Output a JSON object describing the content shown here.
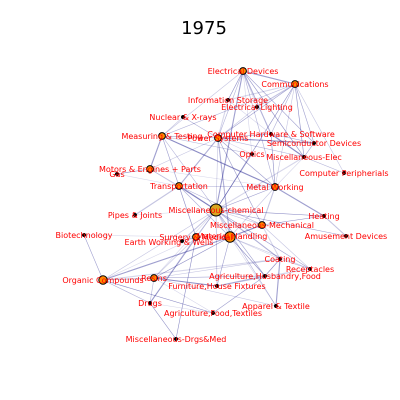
{
  "title": "1975",
  "colors": {
    "label": "#ff0000",
    "edge": "#1a1a8c",
    "node_fill": "#ff8c00",
    "node_fill_hub": "#daa520",
    "node_stroke": "#000000"
  },
  "nodes": [
    {
      "id": "electrical-devices",
      "label": "Electrical Devices",
      "size": "small"
    },
    {
      "id": "communications",
      "label": "Communications",
      "size": "small"
    },
    {
      "id": "information-storage",
      "label": "Information Storage",
      "size": "tiny"
    },
    {
      "id": "electrical-lighting",
      "label": "Electrical Lighting",
      "size": "tiny"
    },
    {
      "id": "nuclear-xrays",
      "label": "Nuclear & X-rays",
      "size": "tiny"
    },
    {
      "id": "measuring-testing",
      "label": "Measuring & Testing",
      "size": "small"
    },
    {
      "id": "power-systems",
      "label": "Power Systems",
      "size": "small"
    },
    {
      "id": "computer-hardware",
      "label": "Computer Hardware & Software",
      "size": "tiny"
    },
    {
      "id": "semiconductor-devices",
      "label": "Semiconductor Devices",
      "size": "tiny"
    },
    {
      "id": "optics",
      "label": "Optics",
      "size": "tiny"
    },
    {
      "id": "misc-elec",
      "label": "Miscellaneous-Elec",
      "size": "tiny"
    },
    {
      "id": "motors-engines",
      "label": "Motors & Engines + Parts",
      "size": "small"
    },
    {
      "id": "gas",
      "label": "Gas",
      "size": "tiny"
    },
    {
      "id": "computer-peripherals",
      "label": "Computer Peripherials",
      "size": "tiny"
    },
    {
      "id": "transportation",
      "label": "Transportation",
      "size": "small"
    },
    {
      "id": "metal-working",
      "label": "Metal Working",
      "size": "small"
    },
    {
      "id": "misc-chemical",
      "label": "Miscellaneous-chemical",
      "size": "hub"
    },
    {
      "id": "heating",
      "label": "Heating",
      "size": "tiny"
    },
    {
      "id": "pipes-joints",
      "label": "Pipes & Joints",
      "size": "tiny"
    },
    {
      "id": "misc-mechanical",
      "label": "Miscellaneous-Mechanical",
      "size": "small"
    },
    {
      "id": "biotechnology",
      "label": "Biotechnology",
      "size": "tiny"
    },
    {
      "id": "surgery-medical",
      "label": "Surgery & Medical",
      "size": "small"
    },
    {
      "id": "material-handling",
      "label": "Material Handling",
      "size": "large"
    },
    {
      "id": "amusement-devices",
      "label": "Amusement Devices",
      "size": "tiny"
    },
    {
      "id": "earth-working",
      "label": "Earth Working & Wells",
      "size": "tiny"
    },
    {
      "id": "coating",
      "label": "Coating",
      "size": "tiny"
    },
    {
      "id": "receptacles",
      "label": "Receptacles",
      "size": "tiny"
    },
    {
      "id": "organic-compounds",
      "label": "Organic Compounds",
      "size": "medium"
    },
    {
      "id": "resins",
      "label": "Resins",
      "size": "small"
    },
    {
      "id": "agriculture-husbandry",
      "label": "Agriculture,Husbandry,Food",
      "size": "tiny"
    },
    {
      "id": "furniture",
      "label": "Furniture,House Fixtures",
      "size": "tiny"
    },
    {
      "id": "drugs",
      "label": "Drugs",
      "size": "tiny"
    },
    {
      "id": "apparel-textile",
      "label": "Apparel & Textile",
      "size": "tiny"
    },
    {
      "id": "agriculture-food-textiles",
      "label": "Agriculture,Food,Textiles",
      "size": "tiny"
    },
    {
      "id": "misc-drgs-med",
      "label": "Miscellaneous-Drgs&Med",
      "size": "tiny"
    }
  ],
  "edges": [
    [
      "misc-chemical",
      "material-handling"
    ],
    [
      "misc-chemical",
      "misc-mechanical"
    ],
    [
      "misc-chemical",
      "surgery-medical"
    ],
    [
      "misc-chemical",
      "metal-working"
    ],
    [
      "misc-chemical",
      "transportation"
    ],
    [
      "misc-chemical",
      "motors-engines"
    ],
    [
      "misc-chemical",
      "power-systems"
    ],
    [
      "misc-chemical",
      "measuring-testing"
    ],
    [
      "misc-chemical",
      "electrical-devices"
    ],
    [
      "misc-chemical",
      "communications"
    ],
    [
      "misc-chemical",
      "resins"
    ],
    [
      "misc-chemical",
      "organic-compounds"
    ],
    [
      "misc-chemical",
      "coating"
    ],
    [
      "misc-chemical",
      "receptacles"
    ],
    [
      "misc-chemical",
      "heating"
    ],
    [
      "misc-chemical",
      "pipes-joints"
    ],
    [
      "misc-chemical",
      "earth-working"
    ],
    [
      "misc-chemical",
      "furniture"
    ],
    [
      "misc-chemical",
      "agriculture-husbandry"
    ],
    [
      "misc-chemical",
      "optics"
    ],
    [
      "misc-chemical",
      "misc-elec"
    ],
    [
      "misc-chemical",
      "drugs"
    ],
    [
      "misc-chemical",
      "apparel-textile"
    ],
    [
      "misc-chemical",
      "amusement-devices"
    ],
    [
      "material-handling",
      "misc-mechanical"
    ],
    [
      "material-handling",
      "surgery-medical"
    ],
    [
      "material-handling",
      "metal-working"
    ],
    [
      "material-handling",
      "transportation"
    ],
    [
      "material-handling",
      "organic-compounds"
    ],
    [
      "material-handling",
      "resins"
    ],
    [
      "material-handling",
      "coating"
    ],
    [
      "material-handling",
      "receptacles"
    ],
    [
      "material-handling",
      "power-systems"
    ],
    [
      "material-handling",
      "furniture"
    ],
    [
      "material-handling",
      "agriculture-husbandry"
    ],
    [
      "material-handling",
      "apparel-textile"
    ],
    [
      "misc-mechanical",
      "metal-working"
    ],
    [
      "misc-mechanical",
      "transportation"
    ],
    [
      "misc-mechanical",
      "power-systems"
    ],
    [
      "misc-mechanical",
      "heating"
    ],
    [
      "misc-mechanical",
      "coating"
    ],
    [
      "misc-mechanical",
      "receptacles"
    ],
    [
      "metal-working",
      "transportation"
    ],
    [
      "metal-working",
      "power-systems"
    ],
    [
      "metal-working",
      "measuring-testing"
    ],
    [
      "metal-working",
      "motors-engines"
    ],
    [
      "metal-working",
      "communications"
    ],
    [
      "metal-working",
      "electrical-devices"
    ],
    [
      "metal-working",
      "heating"
    ],
    [
      "metal-working",
      "computer-hardware"
    ],
    [
      "metal-working",
      "misc-elec"
    ],
    [
      "transportation",
      "motors-engines"
    ],
    [
      "transportation",
      "power-systems"
    ],
    [
      "transportation",
      "measuring-testing"
    ],
    [
      "transportation",
      "surgery-medical"
    ],
    [
      "transportation",
      "gas"
    ],
    [
      "transportation",
      "pipes-joints"
    ],
    [
      "power-systems",
      "electrical-devices"
    ],
    [
      "power-systems",
      "communications"
    ],
    [
      "power-systems",
      "measuring-testing"
    ],
    [
      "power-systems",
      "information-storage"
    ],
    [
      "power-systems",
      "electrical-lighting"
    ],
    [
      "power-systems",
      "nuclear-xrays"
    ],
    [
      "power-systems",
      "computer-hardware"
    ],
    [
      "power-systems",
      "semiconductor-devices"
    ],
    [
      "power-systems",
      "optics"
    ],
    [
      "power-systems",
      "motors-engines"
    ],
    [
      "power-systems",
      "misc-elec"
    ],
    [
      "electrical-devices",
      "communications"
    ],
    [
      "electrical-devices",
      "information-storage"
    ],
    [
      "electrical-devices",
      "electrical-lighting"
    ],
    [
      "electrical-devices",
      "measuring-testing"
    ],
    [
      "electrical-devices",
      "computer-hardware"
    ],
    [
      "electrical-devices",
      "semiconductor-devices"
    ],
    [
      "electrical-devices",
      "misc-elec"
    ],
    [
      "electrical-devices",
      "optics"
    ],
    [
      "communications",
      "electrical-lighting"
    ],
    [
      "communications",
      "computer-hardware"
    ],
    [
      "communications",
      "semiconductor-devices"
    ],
    [
      "communications",
      "misc-elec"
    ],
    [
      "communications",
      "information-storage"
    ],
    [
      "communications",
      "computer-peripherals"
    ],
    [
      "communications",
      "measuring-testing"
    ],
    [
      "computer-hardware",
      "semiconductor-devices"
    ],
    [
      "computer-hardware",
      "misc-elec"
    ],
    [
      "computer-hardware",
      "information-storage"
    ],
    [
      "measuring-testing",
      "nuclear-xrays"
    ],
    [
      "measuring-testing",
      "optics"
    ],
    [
      "measuring-testing",
      "motors-engines"
    ],
    [
      "motors-engines",
      "gas"
    ],
    [
      "surgery-medical",
      "organic-compounds"
    ],
    [
      "surgery-medical",
      "resins"
    ],
    [
      "surgery-medical",
      "drugs"
    ],
    [
      "surgery-medical",
      "earth-working"
    ],
    [
      "surgery-medical",
      "misc-drgs-med"
    ],
    [
      "surgery-medical",
      "biotechnology"
    ],
    [
      "organic-compounds",
      "resins"
    ],
    [
      "organic-compounds",
      "drugs"
    ],
    [
      "organic-compounds",
      "biotechnology"
    ],
    [
      "organic-compounds",
      "agriculture-food-textiles"
    ],
    [
      "organic-compounds",
      "coating"
    ],
    [
      "resins",
      "coating"
    ],
    [
      "resins",
      "drugs"
    ],
    [
      "resins",
      "agriculture-husbandry"
    ],
    [
      "resins",
      "furniture"
    ],
    [
      "resins",
      "agriculture-food-textiles"
    ],
    [
      "resins",
      "apparel-textile"
    ],
    [
      "coating",
      "receptacles"
    ],
    [
      "coating",
      "apparel-textile"
    ],
    [
      "coating",
      "agriculture-husbandry"
    ],
    [
      "receptacles",
      "agriculture-husbandry"
    ],
    [
      "receptacles",
      "furniture"
    ],
    [
      "agriculture-husbandry",
      "furniture"
    ],
    [
      "agriculture-husbandry",
      "agriculture-food-textiles"
    ],
    [
      "drugs",
      "misc-drgs-med"
    ],
    [
      "drugs",
      "agriculture-food-textiles"
    ],
    [
      "heating",
      "amusement-devices"
    ],
    [
      "misc-elec",
      "computer-peripherals"
    ],
    [
      "semiconductor-devices",
      "misc-elec"
    ]
  ]
}
